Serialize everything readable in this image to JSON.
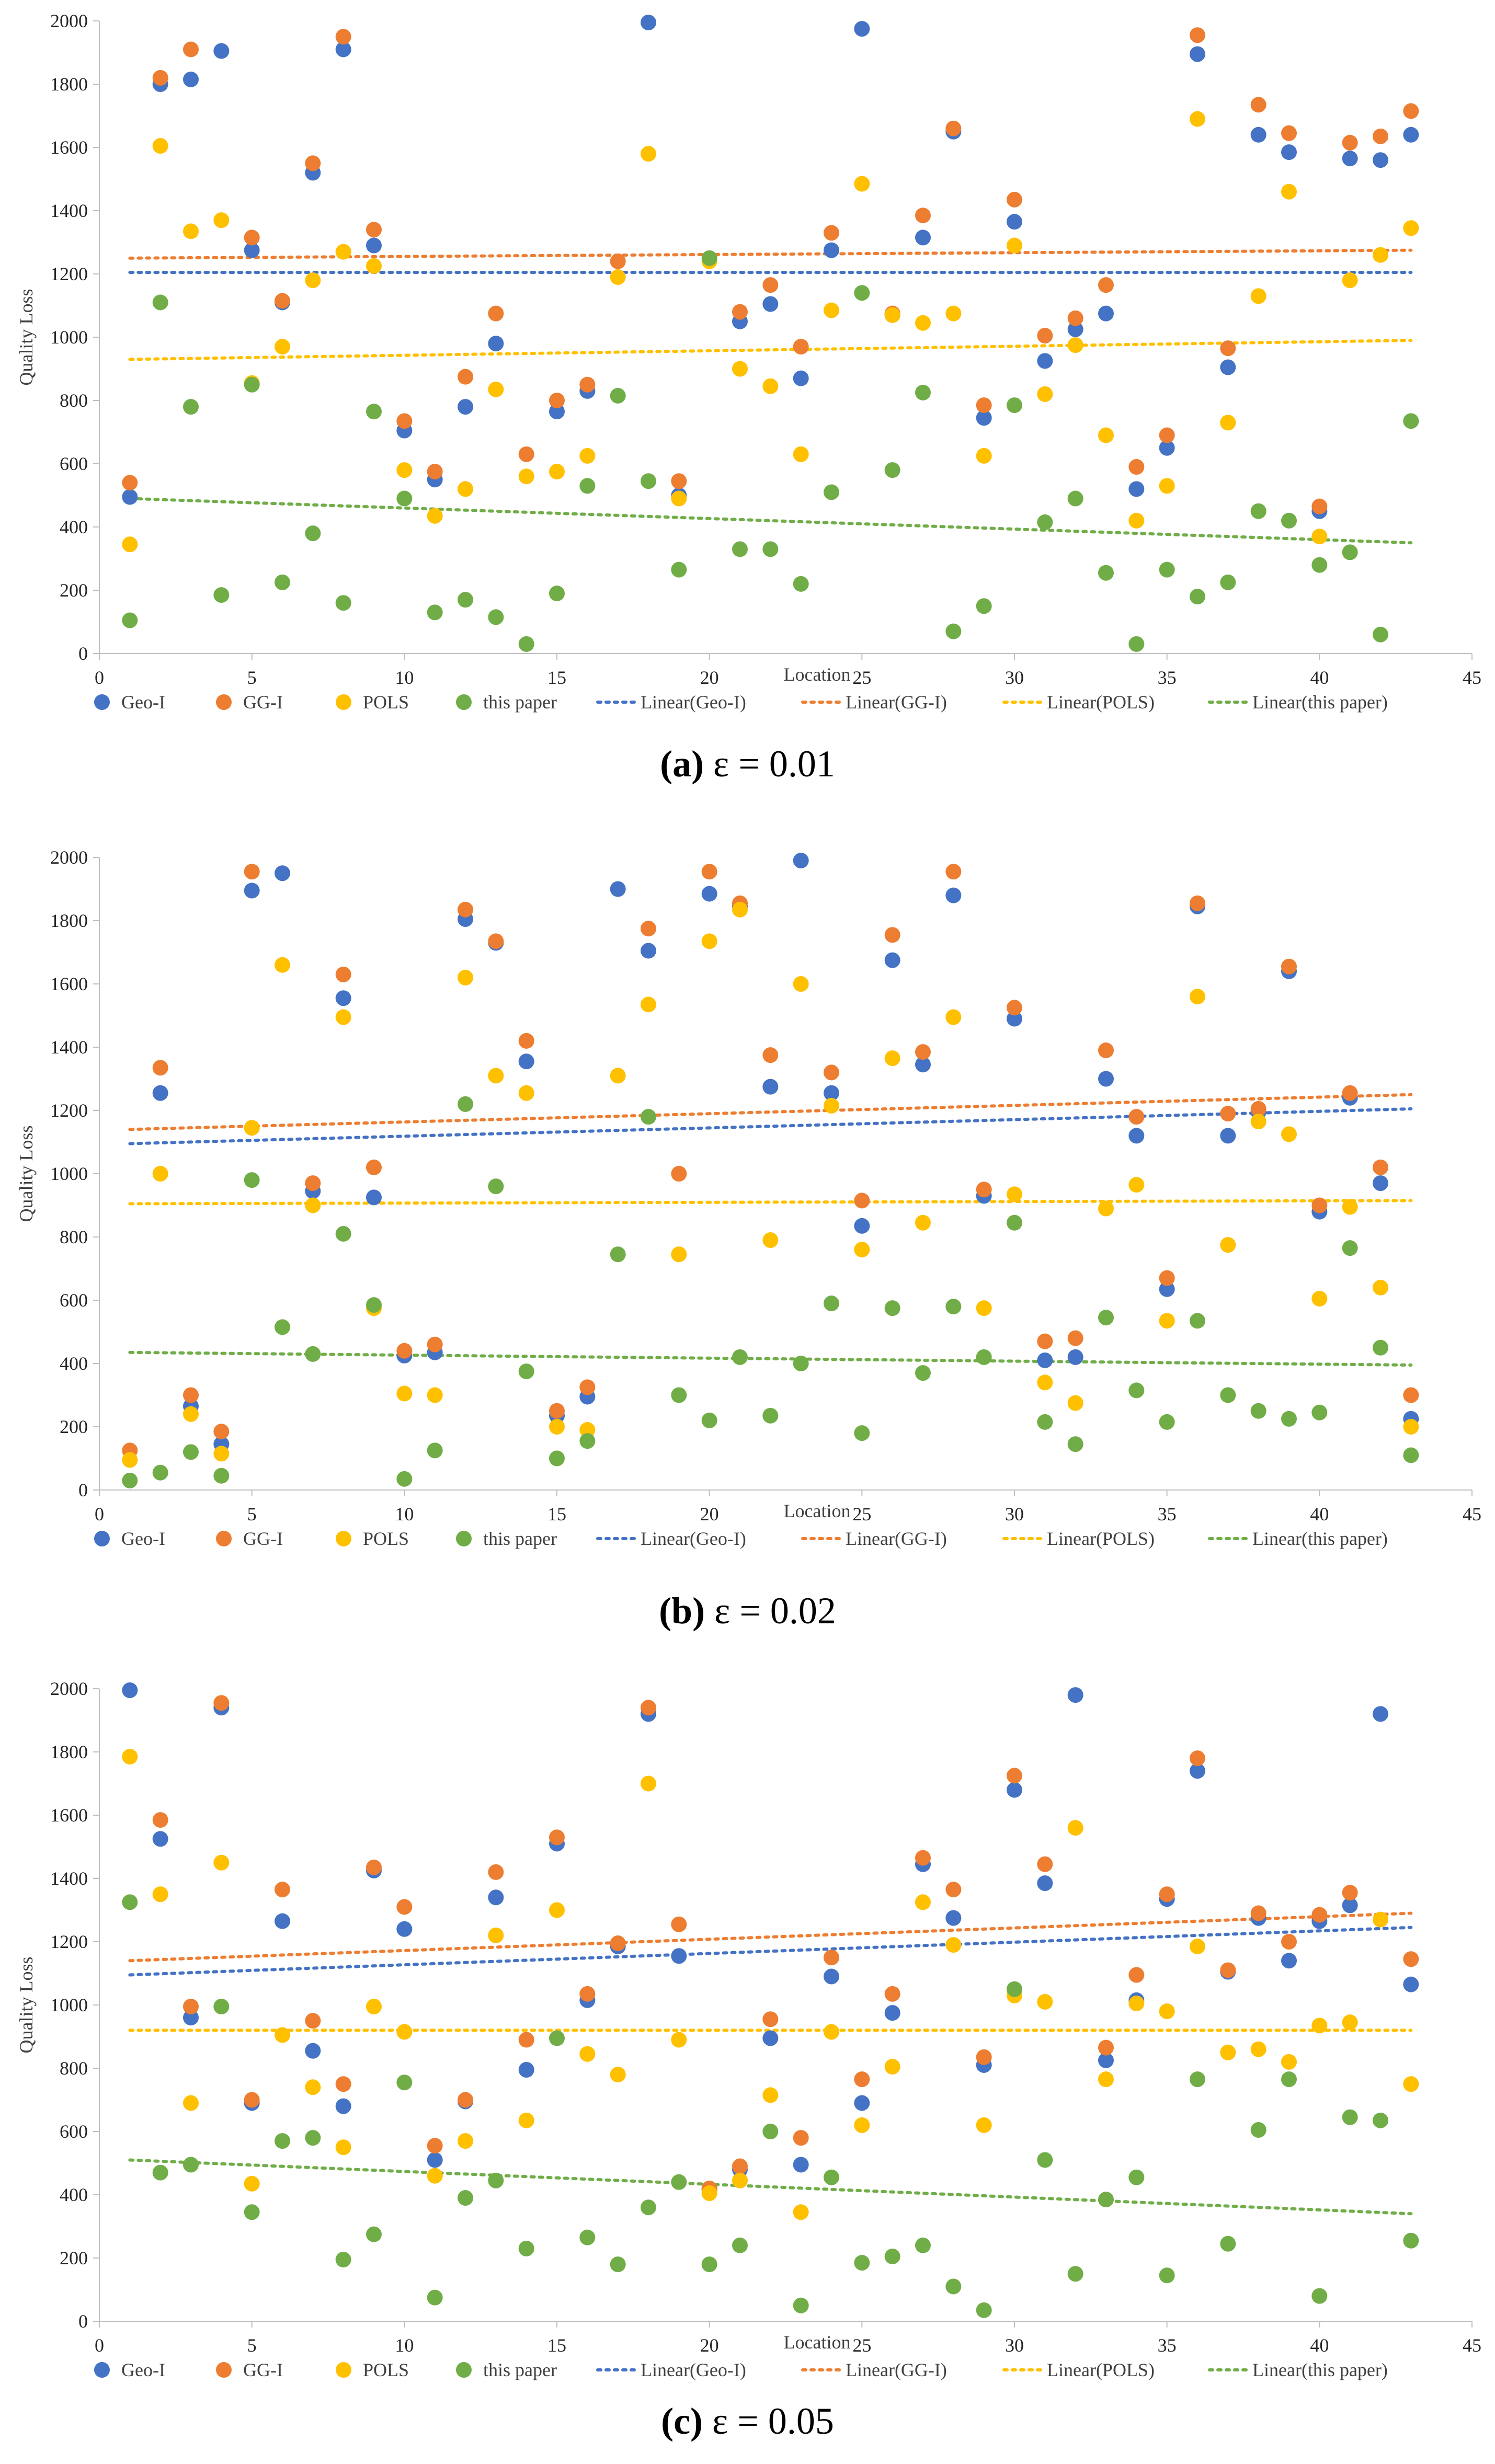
{
  "colors": {
    "geo_i": "#4472C4",
    "gg_i": "#ED7D31",
    "pols": "#FFC000",
    "this_paper": "#70AD47"
  },
  "chart_data": [
    {
      "type": "scatter",
      "title": "",
      "caption_label": "(a)",
      "caption_eps": "ε = 0.01",
      "xlabel": "Location",
      "ylabel": "Quality Loss",
      "xlim": [
        0,
        45
      ],
      "ylim": [
        0,
        2000
      ],
      "xticks": [
        "0",
        "5",
        "10",
        "15",
        "20",
        "25",
        "30",
        "35",
        "40",
        "45"
      ],
      "yticks": [
        "0",
        "200",
        "400",
        "600",
        "800",
        "1000",
        "1200",
        "1400",
        "1600",
        "1800",
        "2000"
      ],
      "legend": [
        "Geo-I",
        "GG-I",
        "POLS",
        "this paper",
        "Linear(Geo-I)",
        "Linear(GG-I)",
        "Linear(POLS)",
        "Linear(this paper)"
      ],
      "x": [
        1,
        2,
        3,
        4,
        5,
        6,
        7,
        8,
        9,
        10,
        11,
        12,
        13,
        14,
        15,
        16,
        17,
        18,
        19,
        20,
        21,
        22,
        23,
        24,
        25,
        26,
        27,
        28,
        29,
        30,
        31,
        32,
        33,
        34,
        35,
        36,
        37,
        38,
        39,
        40,
        41,
        42,
        43
      ],
      "series": [
        {
          "name": "Geo-I",
          "values": [
            495,
            1800,
            1815,
            1905,
            1275,
            1110,
            1520,
            1910,
            1290,
            705,
            550,
            780,
            980,
            null,
            765,
            830,
            null,
            1995,
            500,
            null,
            1050,
            1105,
            870,
            1275,
            1975,
            1070,
            1315,
            1650,
            745,
            1365,
            925,
            1025,
            1075,
            520,
            650,
            1895,
            905,
            1640,
            1585,
            450,
            1565,
            1560,
            1640
          ]
        },
        {
          "name": "GG-I",
          "values": [
            540,
            1820,
            1910,
            null,
            1315,
            1115,
            1550,
            1950,
            1340,
            735,
            575,
            875,
            1075,
            630,
            800,
            850,
            1240,
            null,
            545,
            null,
            1080,
            1165,
            970,
            1330,
            null,
            1075,
            1385,
            1660,
            785,
            1435,
            1005,
            1060,
            1165,
            590,
            690,
            1955,
            965,
            1735,
            1645,
            465,
            1615,
            1635,
            1715
          ]
        },
        {
          "name": "POLS",
          "values": [
            345,
            1605,
            1335,
            1370,
            855,
            970,
            1180,
            1270,
            1225,
            580,
            435,
            520,
            835,
            560,
            575,
            625,
            1190,
            1580,
            490,
            1240,
            900,
            845,
            630,
            1085,
            1485,
            1070,
            1045,
            1075,
            625,
            1290,
            820,
            975,
            690,
            420,
            530,
            1690,
            730,
            1130,
            1460,
            370,
            1180,
            1260,
            1345
          ]
        },
        {
          "name": "this paper",
          "values": [
            105,
            1110,
            780,
            185,
            850,
            225,
            380,
            160,
            765,
            490,
            130,
            170,
            115,
            30,
            190,
            530,
            815,
            545,
            265,
            1250,
            330,
            330,
            220,
            510,
            1140,
            580,
            825,
            70,
            150,
            785,
            415,
            490,
            255,
            30,
            265,
            180,
            225,
            450,
            420,
            280,
            320,
            60,
            735
          ]
        }
      ],
      "trendlines": [
        {
          "name": "Linear(Geo-I)",
          "start": 1205,
          "end": 1205
        },
        {
          "name": "Linear(GG-I)",
          "start": 1250,
          "end": 1275
        },
        {
          "name": "Linear(POLS)",
          "start": 930,
          "end": 990
        },
        {
          "name": "Linear(this paper)",
          "start": 490,
          "end": 350
        }
      ]
    },
    {
      "type": "scatter",
      "title": "",
      "caption_label": "(b)",
      "caption_eps": "ε = 0.02",
      "xlabel": "Location",
      "ylabel": "Quality Loss",
      "xlim": [
        0,
        45
      ],
      "ylim": [
        0,
        2000
      ],
      "xticks": [
        "0",
        "5",
        "10",
        "15",
        "20",
        "25",
        "30",
        "35",
        "40",
        "45"
      ],
      "yticks": [
        "0",
        "200",
        "400",
        "600",
        "800",
        "1000",
        "1200",
        "1400",
        "1600",
        "1800",
        "2000"
      ],
      "legend": [
        "Geo-I",
        "GG-I",
        "POLS",
        "this paper",
        "Linear(Geo-I)",
        "Linear(GG-I)",
        "Linear(POLS)",
        "Linear(this paper)"
      ],
      "x": [
        1,
        2,
        3,
        4,
        5,
        6,
        7,
        8,
        9,
        10,
        11,
        12,
        13,
        14,
        15,
        16,
        17,
        18,
        19,
        20,
        21,
        22,
        23,
        24,
        25,
        26,
        27,
        28,
        29,
        30,
        31,
        32,
        33,
        34,
        35,
        36,
        37,
        38,
        39,
        40,
        41,
        42,
        43
      ],
      "series": [
        {
          "name": "Geo-I",
          "values": [
            null,
            1255,
            265,
            145,
            1895,
            1950,
            945,
            1555,
            925,
            425,
            435,
            1805,
            1730,
            1355,
            235,
            295,
            1900,
            1705,
            null,
            1885,
            1845,
            1275,
            1990,
            1255,
            835,
            1675,
            1345,
            1880,
            930,
            1490,
            410,
            420,
            1300,
            1120,
            635,
            1845,
            1120,
            1195,
            1640,
            880,
            1240,
            970,
            225
          ]
        },
        {
          "name": "GG-I",
          "values": [
            125,
            1335,
            300,
            185,
            1955,
            null,
            970,
            1630,
            1020,
            440,
            460,
            1835,
            1735,
            1420,
            250,
            325,
            null,
            1775,
            1000,
            1955,
            1855,
            1375,
            null,
            1320,
            915,
            1755,
            1385,
            1955,
            950,
            1525,
            470,
            480,
            1390,
            1180,
            670,
            1855,
            1190,
            1205,
            1655,
            900,
            1255,
            1020,
            300
          ]
        },
        {
          "name": "POLS",
          "values": [
            95,
            1000,
            240,
            115,
            1145,
            1660,
            900,
            1495,
            575,
            305,
            300,
            1620,
            1310,
            1255,
            200,
            190,
            1310,
            1535,
            745,
            1735,
            1835,
            790,
            1600,
            1215,
            760,
            1365,
            845,
            1495,
            575,
            935,
            340,
            275,
            890,
            965,
            535,
            1560,
            775,
            1165,
            1125,
            605,
            895,
            640,
            200
          ]
        },
        {
          "name": "this paper",
          "values": [
            30,
            55,
            120,
            45,
            980,
            515,
            430,
            810,
            585,
            35,
            125,
            1220,
            960,
            375,
            100,
            155,
            745,
            1180,
            300,
            220,
            420,
            235,
            400,
            590,
            180,
            575,
            370,
            580,
            420,
            845,
            215,
            145,
            545,
            315,
            215,
            535,
            300,
            250,
            225,
            245,
            765,
            450,
            110
          ]
        }
      ],
      "trendlines": [
        {
          "name": "Linear(Geo-I)",
          "start": 1095,
          "end": 1205
        },
        {
          "name": "Linear(GG-I)",
          "start": 1140,
          "end": 1250
        },
        {
          "name": "Linear(POLS)",
          "start": 905,
          "end": 915
        },
        {
          "name": "Linear(this paper)",
          "start": 435,
          "end": 395
        }
      ]
    },
    {
      "type": "scatter",
      "title": "",
      "caption_label": "(c)",
      "caption_eps": "ε = 0.05",
      "xlabel": "Location",
      "ylabel": "Quality Loss",
      "xlim": [
        0,
        45
      ],
      "ylim": [
        0,
        2000
      ],
      "xticks": [
        "0",
        "5",
        "10",
        "15",
        "20",
        "25",
        "30",
        "35",
        "40",
        "45"
      ],
      "yticks": [
        "0",
        "200",
        "400",
        "600",
        "800",
        "1000",
        "1200",
        "1400",
        "1600",
        "1800",
        "2000"
      ],
      "legend": [
        "Geo-I",
        "GG-I",
        "POLS",
        "this paper",
        "Linear(Geo-I)",
        "Linear(GG-I)",
        "Linear(POLS)",
        "Linear(this paper)"
      ],
      "x": [
        1,
        2,
        3,
        4,
        5,
        6,
        7,
        8,
        9,
        10,
        11,
        12,
        13,
        14,
        15,
        16,
        17,
        18,
        19,
        20,
        21,
        22,
        23,
        24,
        25,
        26,
        27,
        28,
        29,
        30,
        31,
        32,
        33,
        34,
        35,
        36,
        37,
        38,
        39,
        40,
        41,
        42,
        43
      ],
      "series": [
        {
          "name": "Geo-I",
          "values": [
            1995,
            1525,
            960,
            1940,
            690,
            1265,
            855,
            680,
            1425,
            1240,
            510,
            695,
            1340,
            795,
            1510,
            1015,
            1185,
            1920,
            1155,
            415,
            480,
            895,
            495,
            1090,
            690,
            975,
            1445,
            1275,
            810,
            1680,
            1385,
            1980,
            825,
            1015,
            1335,
            1740,
            1105,
            1275,
            1140,
            1265,
            1315,
            1920,
            1065
          ]
        },
        {
          "name": "GG-I",
          "values": [
            null,
            1585,
            995,
            1955,
            700,
            1365,
            950,
            750,
            1435,
            1310,
            555,
            700,
            1420,
            890,
            1530,
            1035,
            1195,
            1940,
            1255,
            420,
            490,
            955,
            580,
            1150,
            765,
            1035,
            1465,
            1365,
            835,
            1725,
            1445,
            null,
            865,
            1095,
            1350,
            1780,
            1110,
            1290,
            1200,
            1285,
            1355,
            null,
            1145
          ]
        },
        {
          "name": "POLS",
          "values": [
            1785,
            1350,
            690,
            1450,
            435,
            905,
            740,
            550,
            995,
            915,
            460,
            570,
            1220,
            635,
            1300,
            845,
            780,
            1700,
            890,
            405,
            445,
            715,
            345,
            915,
            620,
            805,
            1325,
            1190,
            620,
            1030,
            1010,
            1560,
            765,
            1005,
            980,
            1185,
            850,
            860,
            820,
            935,
            945,
            1270,
            750
          ]
        },
        {
          "name": "this paper",
          "values": [
            1325,
            470,
            495,
            995,
            345,
            570,
            580,
            195,
            275,
            755,
            75,
            390,
            445,
            230,
            895,
            265,
            180,
            360,
            440,
            180,
            240,
            600,
            50,
            455,
            185,
            205,
            240,
            110,
            35,
            1050,
            510,
            150,
            385,
            455,
            145,
            765,
            245,
            605,
            765,
            80,
            645,
            635,
            255
          ]
        }
      ],
      "trendlines": [
        {
          "name": "Linear(Geo-I)",
          "start": 1095,
          "end": 1245
        },
        {
          "name": "Linear(GG-I)",
          "start": 1140,
          "end": 1290
        },
        {
          "name": "Linear(POLS)",
          "start": 920,
          "end": 920
        },
        {
          "name": "Linear(this paper)",
          "start": 510,
          "end": 340
        }
      ]
    }
  ]
}
